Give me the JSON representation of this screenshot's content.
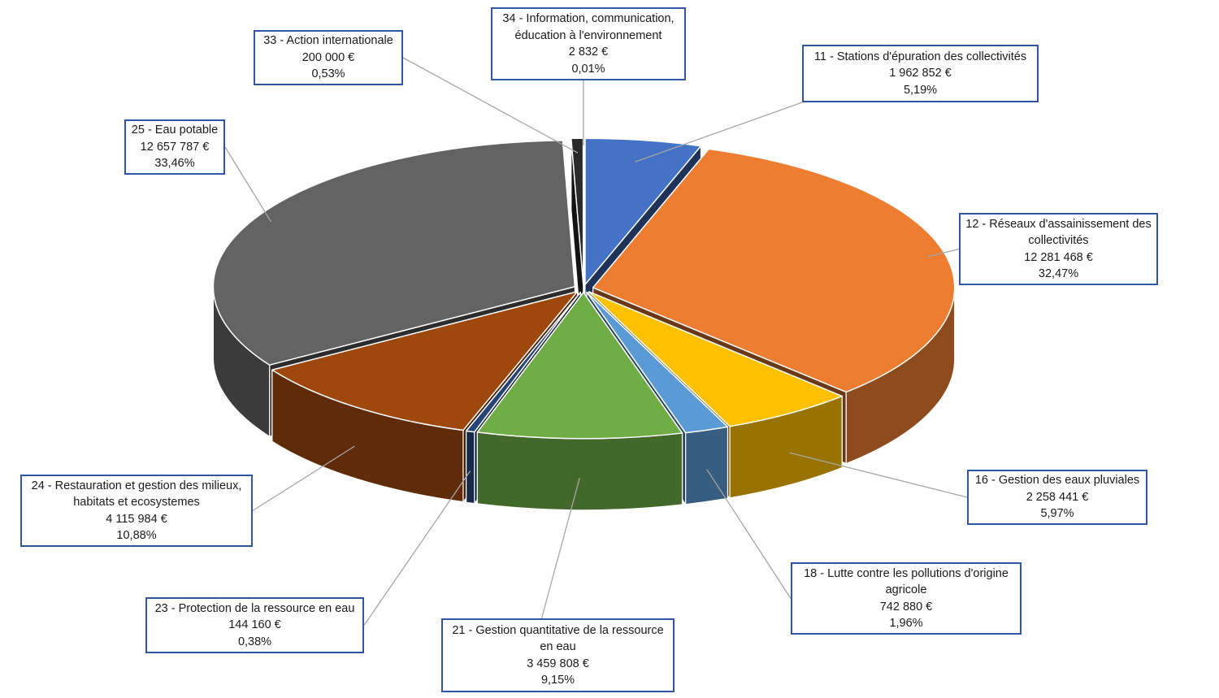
{
  "chart_data": {
    "type": "pie",
    "style": "3d exploded",
    "currency": "€",
    "slices": [
      {
        "id": "11",
        "name": "11 - Stations d'épuration des collectivités",
        "name_lines": [
          "11 - Stations d'épuration des collectivités"
        ],
        "value": 1962852,
        "value_label": "1 962 852 €",
        "percent": 5.19,
        "percent_label": "5,19%",
        "color": "#4472c4"
      },
      {
        "id": "12",
        "name": "12 - Réseaux d'assainissement des collectivités",
        "name_lines": [
          "12 - Réseaux d'assainissement des",
          "collectivités"
        ],
        "value": 12281468,
        "value_label": "12 281 468 €",
        "percent": 32.47,
        "percent_label": "32,47%",
        "color": "#ed7d31"
      },
      {
        "id": "16",
        "name": "16 - Gestion des eaux pluviales",
        "name_lines": [
          "16 - Gestion des eaux pluviales"
        ],
        "value": 2258441,
        "value_label": "2 258 441 €",
        "percent": 5.97,
        "percent_label": "5,97%",
        "color": "#ffc000"
      },
      {
        "id": "18",
        "name": "18 - Lutte contre les pollutions d'origine agricole",
        "name_lines": [
          "18 - Lutte contre les pollutions d'origine",
          "agricole"
        ],
        "value": 742880,
        "value_label": "742 880 €",
        "percent": 1.96,
        "percent_label": "1,96%",
        "color": "#5b9bd5"
      },
      {
        "id": "21",
        "name": "21 - Gestion quantitative de la ressource en eau",
        "name_lines": [
          "21 - Gestion quantitative de la ressource",
          "en eau"
        ],
        "value": 3459808,
        "value_label": "3 459 808 €",
        "percent": 9.15,
        "percent_label": "9,15%",
        "color": "#70ad47"
      },
      {
        "id": "23",
        "name": "23 - Protection de la ressource en eau",
        "name_lines": [
          "23 - Protection de la ressource en eau"
        ],
        "value": 144160,
        "value_label": "144 160 €",
        "percent": 0.38,
        "percent_label": "0,38%",
        "color": "#264478"
      },
      {
        "id": "24",
        "name": "24 - Restauration et gestion des milieux, habitats et ecosystemes",
        "name_lines": [
          "24 - Restauration et gestion des milieux,",
          "habitats et ecosystemes"
        ],
        "value": 4115984,
        "value_label": "4 115 984 €",
        "percent": 10.88,
        "percent_label": "10,88%",
        "color": "#9e480e"
      },
      {
        "id": "25",
        "name": "25 - Eau potable",
        "name_lines": [
          "25 - Eau potable"
        ],
        "value": 12657787,
        "value_label": "12 657 787 €",
        "percent": 33.46,
        "percent_label": "33,46%",
        "color": "#636363"
      },
      {
        "id": "33",
        "name": "33 - Action internationale",
        "name_lines": [
          "33 - Action internationale"
        ],
        "value": 200000,
        "value_label": "200 000 €",
        "percent": 0.53,
        "percent_label": "0,53%",
        "color": "#2a2a2a"
      },
      {
        "id": "34",
        "name": "34 - Information, communication, éducation à l'environnement",
        "name_lines": [
          "34 - Information, communication,",
          "éducation à l'environnement"
        ],
        "value": 2832,
        "value_label": "2 832 €",
        "percent": 0.01,
        "percent_label": "0,01%",
        "color": "#997300"
      }
    ]
  }
}
